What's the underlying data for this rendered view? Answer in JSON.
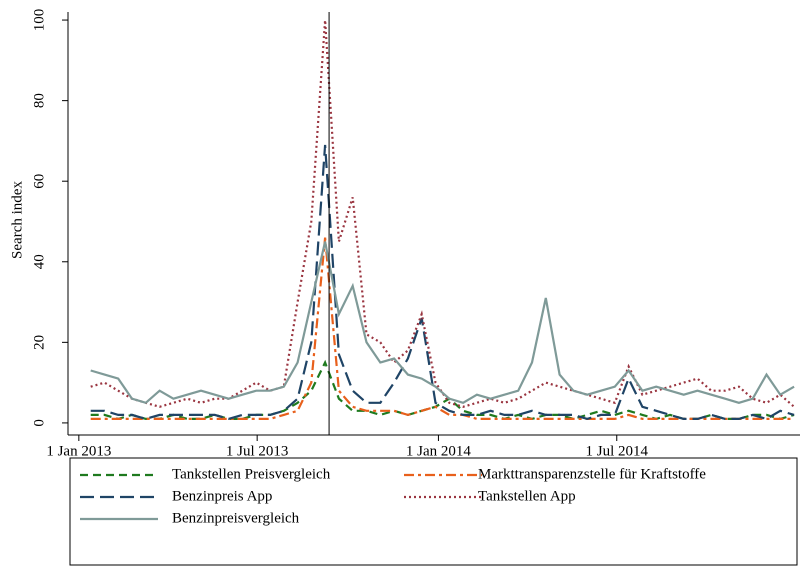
{
  "chart_data": {
    "type": "line",
    "y_label": "Search index",
    "x": [
      "2013-01-13",
      "2013-01-27",
      "2013-02-10",
      "2013-02-24",
      "2013-03-10",
      "2013-03-24",
      "2013-04-07",
      "2013-04-21",
      "2013-05-05",
      "2013-05-19",
      "2013-06-02",
      "2013-06-16",
      "2013-06-30",
      "2013-07-14",
      "2013-07-28",
      "2013-08-11",
      "2013-08-25",
      "2013-09-08",
      "2013-09-22",
      "2013-10-06",
      "2013-10-20",
      "2013-11-03",
      "2013-11-17",
      "2013-12-01",
      "2013-12-15",
      "2013-12-29",
      "2014-01-12",
      "2014-01-26",
      "2014-02-09",
      "2014-02-23",
      "2014-03-09",
      "2014-03-23",
      "2014-04-06",
      "2014-04-20",
      "2014-05-04",
      "2014-05-18",
      "2014-06-01",
      "2014-06-15",
      "2014-06-29",
      "2014-07-13",
      "2014-07-27",
      "2014-08-10",
      "2014-08-24",
      "2014-09-07",
      "2014-09-21",
      "2014-10-05",
      "2014-10-19",
      "2014-11-02",
      "2014-11-16",
      "2014-11-30",
      "2014-12-14",
      "2014-12-28"
    ],
    "series": [
      {
        "name": "Tankstellen Preisvergleich",
        "color": "#1f7a1f",
        "dash": "8,5",
        "values": [
          2,
          2,
          1,
          2,
          1,
          1,
          2,
          1,
          1,
          2,
          1,
          1,
          2,
          2,
          3,
          5,
          8,
          15,
          6,
          3,
          3,
          2,
          3,
          2,
          3,
          4,
          6,
          3,
          2,
          2,
          1,
          2,
          1,
          2,
          2,
          1,
          2,
          3,
          2,
          3,
          2,
          1,
          2,
          1,
          1,
          2,
          1,
          1,
          2,
          2,
          1,
          2
        ]
      },
      {
        "name": "Markttransparenzstelle für Kraftstoffe",
        "color": "#e8601c",
        "dash": "10,4,3,4",
        "values": [
          1,
          1,
          1,
          1,
          1,
          1,
          1,
          1,
          1,
          1,
          1,
          1,
          1,
          1,
          2,
          3,
          10,
          46,
          8,
          4,
          3,
          3,
          3,
          2,
          3,
          4,
          2,
          2,
          1,
          1,
          1,
          1,
          1,
          1,
          1,
          1,
          1,
          1,
          1,
          2,
          1,
          1,
          1,
          1,
          1,
          1,
          1,
          1,
          1,
          1,
          1,
          1
        ]
      },
      {
        "name": "Benzinpreis App",
        "color": "#1f4466",
        "dash": "14,6",
        "values": [
          3,
          3,
          2,
          2,
          1,
          2,
          2,
          2,
          2,
          2,
          1,
          2,
          2,
          2,
          3,
          6,
          20,
          69,
          17,
          8,
          5,
          5,
          10,
          16,
          26,
          5,
          3,
          2,
          2,
          3,
          2,
          2,
          3,
          2,
          2,
          2,
          1,
          2,
          2,
          11,
          4,
          3,
          2,
          1,
          1,
          2,
          1,
          1,
          2,
          1,
          3,
          2
        ]
      },
      {
        "name": "Tankstellen App",
        "color": "#9a3540",
        "dash": "2,3",
        "values": [
          9,
          10,
          8,
          6,
          5,
          4,
          5,
          6,
          5,
          6,
          6,
          8,
          10,
          8,
          9,
          30,
          50,
          100,
          45,
          56,
          22,
          20,
          15,
          18,
          27,
          10,
          5,
          4,
          5,
          6,
          5,
          6,
          8,
          10,
          9,
          8,
          7,
          6,
          5,
          14,
          7,
          8,
          9,
          10,
          11,
          8,
          8,
          9,
          6,
          5,
          7,
          4
        ]
      },
      {
        "name": "Benzinpreisvergleich",
        "color": "#7f9a98",
        "dash": "",
        "values": [
          13,
          12,
          11,
          6,
          5,
          8,
          6,
          7,
          8,
          7,
          6,
          7,
          8,
          8,
          9,
          15,
          30,
          45,
          27,
          34,
          20,
          15,
          16,
          12,
          11,
          9,
          6,
          5,
          7,
          6,
          7,
          8,
          15,
          31,
          12,
          8,
          7,
          8,
          9,
          13,
          8,
          9,
          8,
          7,
          8,
          7,
          6,
          5,
          6,
          12,
          7,
          9
        ]
      }
    ],
    "vline": "2013-09-12",
    "xlim": [
      "2012-12-21",
      "2015-01-03"
    ],
    "xticks": [
      {
        "value": "2013-01-01",
        "label": "1 Jan 2013"
      },
      {
        "value": "2013-07-01",
        "label": "1 Jul 2013"
      },
      {
        "value": "2014-01-01",
        "label": "1 Jan 2014"
      },
      {
        "value": "2014-07-01",
        "label": "1 Jul 2014"
      }
    ],
    "ylim": [
      -3,
      102
    ],
    "yticks": [
      0,
      20,
      40,
      60,
      80,
      100
    ]
  }
}
